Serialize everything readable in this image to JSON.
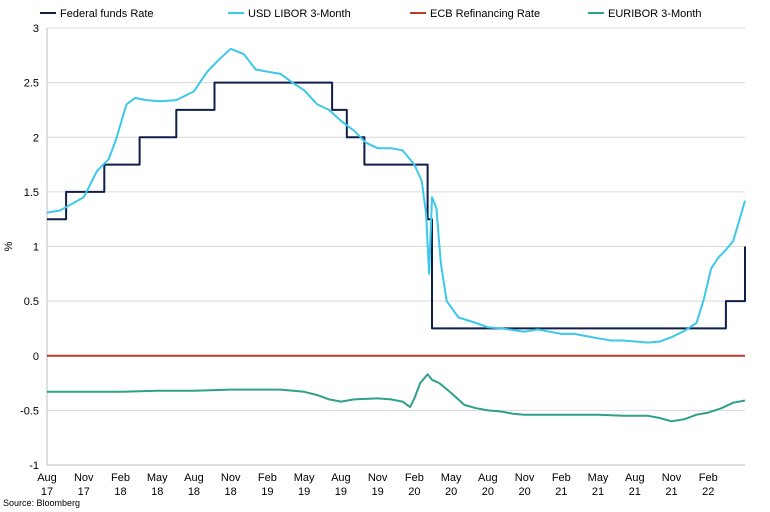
{
  "chart_data": {
    "type": "line",
    "title": "",
    "xlabel": "",
    "ylabel": "%",
    "ylim": [
      -1,
      3
    ],
    "yticks": [
      "-1",
      "-0.5",
      "0",
      "0.5",
      "1",
      "1.5",
      "2",
      "2.5",
      "3"
    ],
    "ytick_values": [
      -1,
      -0.5,
      0,
      0.5,
      1,
      1.5,
      2,
      2.5,
      3
    ],
    "x_range": [
      2017.58,
      2022.33
    ],
    "xticks": [
      {
        "x": 2017.58,
        "line1": "Aug",
        "line2": "17"
      },
      {
        "x": 2017.83,
        "line1": "Nov",
        "line2": "17"
      },
      {
        "x": 2018.08,
        "line1": "Feb",
        "line2": "18"
      },
      {
        "x": 2018.33,
        "line1": "May",
        "line2": "18"
      },
      {
        "x": 2018.58,
        "line1": "Aug",
        "line2": "18"
      },
      {
        "x": 2018.83,
        "line1": "Nov",
        "line2": "18"
      },
      {
        "x": 2019.08,
        "line1": "Feb",
        "line2": "19"
      },
      {
        "x": 2019.33,
        "line1": "May",
        "line2": "19"
      },
      {
        "x": 2019.58,
        "line1": "Aug",
        "line2": "19"
      },
      {
        "x": 2019.83,
        "line1": "Nov",
        "line2": "19"
      },
      {
        "x": 2020.08,
        "line1": "Feb",
        "line2": "20"
      },
      {
        "x": 2020.33,
        "line1": "May",
        "line2": "20"
      },
      {
        "x": 2020.58,
        "line1": "Aug",
        "line2": "20"
      },
      {
        "x": 2020.83,
        "line1": "Nov",
        "line2": "20"
      },
      {
        "x": 2021.08,
        "line1": "Feb",
        "line2": "21"
      },
      {
        "x": 2021.33,
        "line1": "May",
        "line2": "21"
      },
      {
        "x": 2021.58,
        "line1": "Aug",
        "line2": "21"
      },
      {
        "x": 2021.83,
        "line1": "Nov",
        "line2": "21"
      },
      {
        "x": 2022.08,
        "line1": "Feb",
        "line2": "22"
      }
    ],
    "legend_position": "top",
    "grid": true,
    "source": "Source: Bloomberg",
    "series": [
      {
        "name": "Federal funds Rate",
        "color": "#0e1f4a",
        "step": true,
        "points": [
          [
            2017.58,
            1.25
          ],
          [
            2017.71,
            1.5
          ],
          [
            2017.97,
            1.75
          ],
          [
            2018.21,
            2.0
          ],
          [
            2018.46,
            2.25
          ],
          [
            2018.72,
            2.5
          ],
          [
            2019.52,
            2.25
          ],
          [
            2019.62,
            2.0
          ],
          [
            2019.74,
            1.75
          ],
          [
            2020.17,
            1.25
          ],
          [
            2020.2,
            0.25
          ],
          [
            2022.2,
            0.5
          ],
          [
            2022.33,
            1.0
          ]
        ]
      },
      {
        "name": "USD LIBOR 3-Month",
        "color": "#3cc8ea",
        "step": false,
        "points": [
          [
            2017.58,
            1.31
          ],
          [
            2017.67,
            1.33
          ],
          [
            2017.75,
            1.39
          ],
          [
            2017.83,
            1.45
          ],
          [
            2017.92,
            1.69
          ],
          [
            2018.0,
            1.8
          ],
          [
            2018.05,
            1.98
          ],
          [
            2018.12,
            2.3
          ],
          [
            2018.18,
            2.36
          ],
          [
            2018.25,
            2.34
          ],
          [
            2018.35,
            2.33
          ],
          [
            2018.46,
            2.34
          ],
          [
            2018.58,
            2.42
          ],
          [
            2018.67,
            2.6
          ],
          [
            2018.75,
            2.71
          ],
          [
            2018.83,
            2.81
          ],
          [
            2018.92,
            2.76
          ],
          [
            2019.0,
            2.62
          ],
          [
            2019.08,
            2.6
          ],
          [
            2019.17,
            2.58
          ],
          [
            2019.25,
            2.5
          ],
          [
            2019.33,
            2.43
          ],
          [
            2019.42,
            2.3
          ],
          [
            2019.5,
            2.25
          ],
          [
            2019.58,
            2.15
          ],
          [
            2019.67,
            2.06
          ],
          [
            2019.75,
            1.95
          ],
          [
            2019.83,
            1.9
          ],
          [
            2019.92,
            1.9
          ],
          [
            2020.0,
            1.88
          ],
          [
            2020.08,
            1.75
          ],
          [
            2020.13,
            1.6
          ],
          [
            2020.16,
            1.3
          ],
          [
            2020.18,
            0.75
          ],
          [
            2020.2,
            1.45
          ],
          [
            2020.23,
            1.35
          ],
          [
            2020.26,
            0.85
          ],
          [
            2020.3,
            0.5
          ],
          [
            2020.38,
            0.35
          ],
          [
            2020.5,
            0.3
          ],
          [
            2020.58,
            0.26
          ],
          [
            2020.67,
            0.25
          ],
          [
            2020.83,
            0.22
          ],
          [
            2020.92,
            0.24
          ],
          [
            2021.0,
            0.22
          ],
          [
            2021.08,
            0.2
          ],
          [
            2021.17,
            0.2
          ],
          [
            2021.25,
            0.18
          ],
          [
            2021.33,
            0.16
          ],
          [
            2021.42,
            0.14
          ],
          [
            2021.5,
            0.14
          ],
          [
            2021.58,
            0.13
          ],
          [
            2021.67,
            0.12
          ],
          [
            2021.75,
            0.13
          ],
          [
            2021.83,
            0.17
          ],
          [
            2021.92,
            0.23
          ],
          [
            2022.0,
            0.3
          ],
          [
            2022.05,
            0.52
          ],
          [
            2022.1,
            0.8
          ],
          [
            2022.15,
            0.9
          ],
          [
            2022.2,
            0.97
          ],
          [
            2022.25,
            1.05
          ],
          [
            2022.3,
            1.28
          ],
          [
            2022.33,
            1.42
          ]
        ]
      },
      {
        "name": "ECB Refinancing Rate",
        "color": "#c0392b",
        "step": false,
        "points": [
          [
            2017.58,
            0.0
          ],
          [
            2022.33,
            0.0
          ]
        ]
      },
      {
        "name": "EURIBOR 3-Month",
        "color": "#2fa08a",
        "step": false,
        "points": [
          [
            2017.58,
            -0.33
          ],
          [
            2017.83,
            -0.33
          ],
          [
            2018.08,
            -0.33
          ],
          [
            2018.33,
            -0.32
          ],
          [
            2018.58,
            -0.32
          ],
          [
            2018.83,
            -0.31
          ],
          [
            2019.0,
            -0.31
          ],
          [
            2019.17,
            -0.31
          ],
          [
            2019.33,
            -0.33
          ],
          [
            2019.42,
            -0.36
          ],
          [
            2019.5,
            -0.4
          ],
          [
            2019.58,
            -0.42
          ],
          [
            2019.67,
            -0.4
          ],
          [
            2019.83,
            -0.39
          ],
          [
            2019.92,
            -0.4
          ],
          [
            2020.0,
            -0.42
          ],
          [
            2020.05,
            -0.47
          ],
          [
            2020.08,
            -0.39
          ],
          [
            2020.12,
            -0.25
          ],
          [
            2020.17,
            -0.17
          ],
          [
            2020.2,
            -0.22
          ],
          [
            2020.25,
            -0.25
          ],
          [
            2020.33,
            -0.34
          ],
          [
            2020.42,
            -0.45
          ],
          [
            2020.5,
            -0.48
          ],
          [
            2020.58,
            -0.5
          ],
          [
            2020.67,
            -0.51
          ],
          [
            2020.75,
            -0.53
          ],
          [
            2020.83,
            -0.54
          ],
          [
            2021.0,
            -0.54
          ],
          [
            2021.17,
            -0.54
          ],
          [
            2021.33,
            -0.54
          ],
          [
            2021.5,
            -0.55
          ],
          [
            2021.67,
            -0.55
          ],
          [
            2021.75,
            -0.57
          ],
          [
            2021.83,
            -0.6
          ],
          [
            2021.92,
            -0.58
          ],
          [
            2022.0,
            -0.54
          ],
          [
            2022.08,
            -0.52
          ],
          [
            2022.17,
            -0.48
          ],
          [
            2022.25,
            -0.43
          ],
          [
            2022.33,
            -0.41
          ]
        ]
      }
    ]
  }
}
